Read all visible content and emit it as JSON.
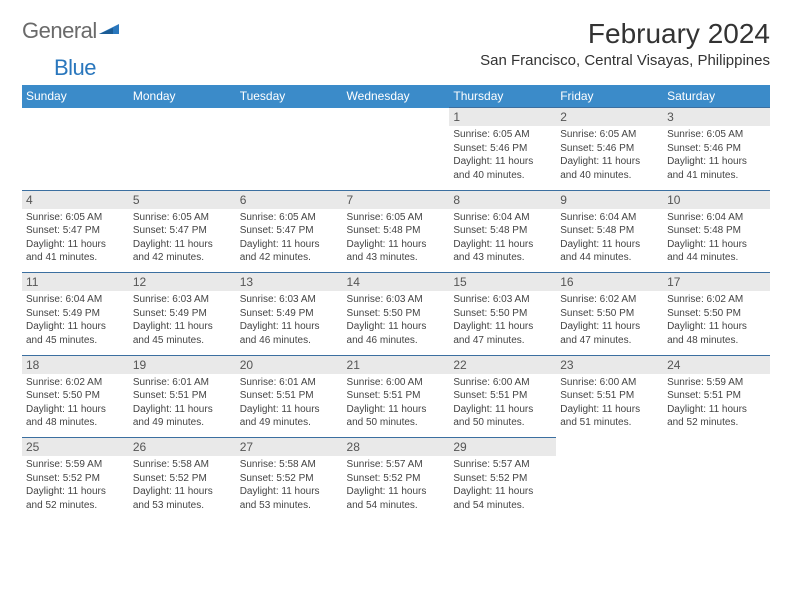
{
  "brand": {
    "general": "General",
    "blue": "Blue"
  },
  "title": "February 2024",
  "location": "San Francisco, Central Visayas, Philippines",
  "colors": {
    "header_bg": "#3b8bc9",
    "header_text": "#ffffff",
    "daynum_bg": "#e9e9e9",
    "daynum_border": "#3b6fa0",
    "text": "#333333",
    "logo_gray": "#6a6a6a",
    "logo_blue": "#2a77bd"
  },
  "day_names": [
    "Sunday",
    "Monday",
    "Tuesday",
    "Wednesday",
    "Thursday",
    "Friday",
    "Saturday"
  ],
  "weeks": [
    [
      null,
      null,
      null,
      null,
      {
        "n": "1",
        "sr": "Sunrise: 6:05 AM",
        "ss": "Sunset: 5:46 PM",
        "dl": "Daylight: 11 hours and 40 minutes."
      },
      {
        "n": "2",
        "sr": "Sunrise: 6:05 AM",
        "ss": "Sunset: 5:46 PM",
        "dl": "Daylight: 11 hours and 40 minutes."
      },
      {
        "n": "3",
        "sr": "Sunrise: 6:05 AM",
        "ss": "Sunset: 5:46 PM",
        "dl": "Daylight: 11 hours and 41 minutes."
      }
    ],
    [
      {
        "n": "4",
        "sr": "Sunrise: 6:05 AM",
        "ss": "Sunset: 5:47 PM",
        "dl": "Daylight: 11 hours and 41 minutes."
      },
      {
        "n": "5",
        "sr": "Sunrise: 6:05 AM",
        "ss": "Sunset: 5:47 PM",
        "dl": "Daylight: 11 hours and 42 minutes."
      },
      {
        "n": "6",
        "sr": "Sunrise: 6:05 AM",
        "ss": "Sunset: 5:47 PM",
        "dl": "Daylight: 11 hours and 42 minutes."
      },
      {
        "n": "7",
        "sr": "Sunrise: 6:05 AM",
        "ss": "Sunset: 5:48 PM",
        "dl": "Daylight: 11 hours and 43 minutes."
      },
      {
        "n": "8",
        "sr": "Sunrise: 6:04 AM",
        "ss": "Sunset: 5:48 PM",
        "dl": "Daylight: 11 hours and 43 minutes."
      },
      {
        "n": "9",
        "sr": "Sunrise: 6:04 AM",
        "ss": "Sunset: 5:48 PM",
        "dl": "Daylight: 11 hours and 44 minutes."
      },
      {
        "n": "10",
        "sr": "Sunrise: 6:04 AM",
        "ss": "Sunset: 5:48 PM",
        "dl": "Daylight: 11 hours and 44 minutes."
      }
    ],
    [
      {
        "n": "11",
        "sr": "Sunrise: 6:04 AM",
        "ss": "Sunset: 5:49 PM",
        "dl": "Daylight: 11 hours and 45 minutes."
      },
      {
        "n": "12",
        "sr": "Sunrise: 6:03 AM",
        "ss": "Sunset: 5:49 PM",
        "dl": "Daylight: 11 hours and 45 minutes."
      },
      {
        "n": "13",
        "sr": "Sunrise: 6:03 AM",
        "ss": "Sunset: 5:49 PM",
        "dl": "Daylight: 11 hours and 46 minutes."
      },
      {
        "n": "14",
        "sr": "Sunrise: 6:03 AM",
        "ss": "Sunset: 5:50 PM",
        "dl": "Daylight: 11 hours and 46 minutes."
      },
      {
        "n": "15",
        "sr": "Sunrise: 6:03 AM",
        "ss": "Sunset: 5:50 PM",
        "dl": "Daylight: 11 hours and 47 minutes."
      },
      {
        "n": "16",
        "sr": "Sunrise: 6:02 AM",
        "ss": "Sunset: 5:50 PM",
        "dl": "Daylight: 11 hours and 47 minutes."
      },
      {
        "n": "17",
        "sr": "Sunrise: 6:02 AM",
        "ss": "Sunset: 5:50 PM",
        "dl": "Daylight: 11 hours and 48 minutes."
      }
    ],
    [
      {
        "n": "18",
        "sr": "Sunrise: 6:02 AM",
        "ss": "Sunset: 5:50 PM",
        "dl": "Daylight: 11 hours and 48 minutes."
      },
      {
        "n": "19",
        "sr": "Sunrise: 6:01 AM",
        "ss": "Sunset: 5:51 PM",
        "dl": "Daylight: 11 hours and 49 minutes."
      },
      {
        "n": "20",
        "sr": "Sunrise: 6:01 AM",
        "ss": "Sunset: 5:51 PM",
        "dl": "Daylight: 11 hours and 49 minutes."
      },
      {
        "n": "21",
        "sr": "Sunrise: 6:00 AM",
        "ss": "Sunset: 5:51 PM",
        "dl": "Daylight: 11 hours and 50 minutes."
      },
      {
        "n": "22",
        "sr": "Sunrise: 6:00 AM",
        "ss": "Sunset: 5:51 PM",
        "dl": "Daylight: 11 hours and 50 minutes."
      },
      {
        "n": "23",
        "sr": "Sunrise: 6:00 AM",
        "ss": "Sunset: 5:51 PM",
        "dl": "Daylight: 11 hours and 51 minutes."
      },
      {
        "n": "24",
        "sr": "Sunrise: 5:59 AM",
        "ss": "Sunset: 5:51 PM",
        "dl": "Daylight: 11 hours and 52 minutes."
      }
    ],
    [
      {
        "n": "25",
        "sr": "Sunrise: 5:59 AM",
        "ss": "Sunset: 5:52 PM",
        "dl": "Daylight: 11 hours and 52 minutes."
      },
      {
        "n": "26",
        "sr": "Sunrise: 5:58 AM",
        "ss": "Sunset: 5:52 PM",
        "dl": "Daylight: 11 hours and 53 minutes."
      },
      {
        "n": "27",
        "sr": "Sunrise: 5:58 AM",
        "ss": "Sunset: 5:52 PM",
        "dl": "Daylight: 11 hours and 53 minutes."
      },
      {
        "n": "28",
        "sr": "Sunrise: 5:57 AM",
        "ss": "Sunset: 5:52 PM",
        "dl": "Daylight: 11 hours and 54 minutes."
      },
      {
        "n": "29",
        "sr": "Sunrise: 5:57 AM",
        "ss": "Sunset: 5:52 PM",
        "dl": "Daylight: 11 hours and 54 minutes."
      },
      null,
      null
    ]
  ]
}
